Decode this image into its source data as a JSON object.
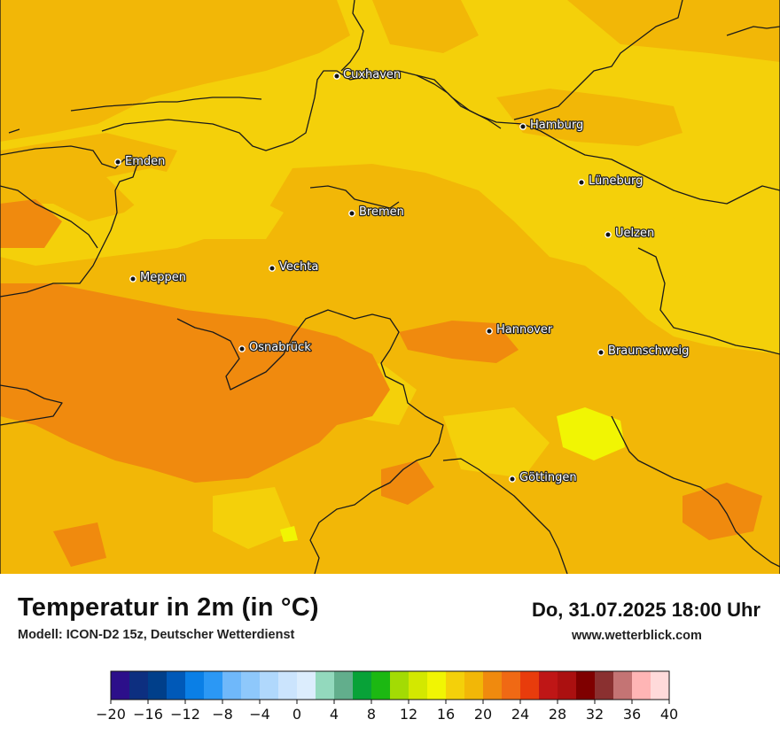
{
  "map": {
    "cities": [
      {
        "name": "Cuxhaven"
      },
      {
        "name": "Hamburg"
      },
      {
        "name": "Emden"
      },
      {
        "name": "Lüneburg"
      },
      {
        "name": "Bremen"
      },
      {
        "name": "Uelzen"
      },
      {
        "name": "Vechta"
      },
      {
        "name": "Meppen"
      },
      {
        "name": "Hannover"
      },
      {
        "name": "Osnabrück"
      },
      {
        "name": "Braunschweig"
      },
      {
        "name": "Göttingen"
      }
    ]
  },
  "footer": {
    "title": "Temperatur in 2m (in °C)",
    "subtitle": "Modell: ICON-D2 15z, Deutscher Wetterdienst",
    "datetime": "Do, 31.07.2025 18:00 Uhr",
    "website": "www.wetterblick.com"
  },
  "legend": {
    "ticks": [
      "−20",
      "−16",
      "−12",
      "−8",
      "−4",
      "0",
      "4",
      "8",
      "12",
      "16",
      "20",
      "24",
      "28",
      "32",
      "36",
      "40"
    ],
    "colors": [
      "#2c0f8a",
      "#0d2f80",
      "#003f8a",
      "#0059b8",
      "#0a7fe6",
      "#2b98f5",
      "#6fb8fa",
      "#8ec8fb",
      "#b0d8fc",
      "#cbe4fd",
      "#dcedfd",
      "#93d9bd",
      "#62ae8c",
      "#08a238",
      "#1cb812",
      "#a3db04",
      "#d3e800",
      "#f1f503",
      "#f4d00a",
      "#f2b707",
      "#f08a0e",
      "#f06914",
      "#e83c0c",
      "#bf1616",
      "#ab1010",
      "#7f0000",
      "#8a3030",
      "#c47474",
      "#ffb5b5",
      "#ffdada"
    ]
  }
}
